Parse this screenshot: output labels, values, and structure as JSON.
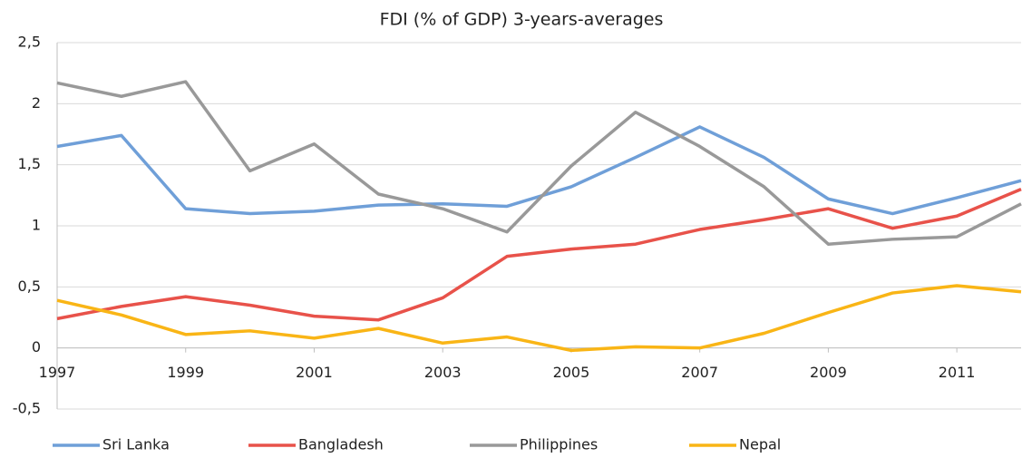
{
  "chart_data": {
    "type": "line",
    "title": "FDI (% of GDP) 3-years-averages",
    "x": [
      1997,
      1998,
      1999,
      2000,
      2001,
      2002,
      2003,
      2004,
      2005,
      2006,
      2007,
      2008,
      2009,
      2010,
      2011,
      2012
    ],
    "xlim": [
      1997,
      2012
    ],
    "xticks": [
      1997,
      1999,
      2001,
      2003,
      2005,
      2007,
      2009,
      2011
    ],
    "ylim": [
      -0.5,
      2.5
    ],
    "yticks": [
      {
        "value": -0.5,
        "label": "-0,5"
      },
      0,
      {
        "value": 0.5,
        "label": "0,5"
      },
      1,
      {
        "value": 1.5,
        "label": "1,5"
      },
      2,
      {
        "value": 2.5,
        "label": "2,5"
      }
    ],
    "grid": true,
    "legend": "bottom",
    "series": [
      {
        "name": "Sri Lanka",
        "color": "#6f9fd8",
        "values": [
          1.65,
          1.74,
          1.14,
          1.1,
          1.12,
          1.17,
          1.18,
          1.16,
          1.32,
          1.56,
          1.81,
          1.56,
          1.22,
          1.1,
          1.23,
          1.37
        ]
      },
      {
        "name": "Bangladesh",
        "color": "#e8524a",
        "values": [
          0.24,
          0.34,
          0.42,
          0.35,
          0.26,
          0.23,
          0.41,
          0.75,
          0.81,
          0.85,
          0.97,
          1.05,
          1.14,
          0.98,
          1.08,
          1.3
        ]
      },
      {
        "name": "Philippines",
        "color": "#999999",
        "values": [
          2.17,
          2.06,
          2.18,
          1.45,
          1.67,
          1.26,
          1.14,
          0.95,
          1.49,
          1.93,
          1.65,
          1.32,
          0.85,
          0.89,
          0.91,
          1.18
        ]
      },
      {
        "name": "Nepal",
        "color": "#f9b516",
        "values": [
          0.39,
          0.27,
          0.11,
          0.14,
          0.08,
          0.16,
          0.04,
          0.09,
          -0.02,
          0.01,
          0.0,
          0.12,
          0.29,
          0.45,
          0.51,
          0.46
        ]
      }
    ]
  }
}
